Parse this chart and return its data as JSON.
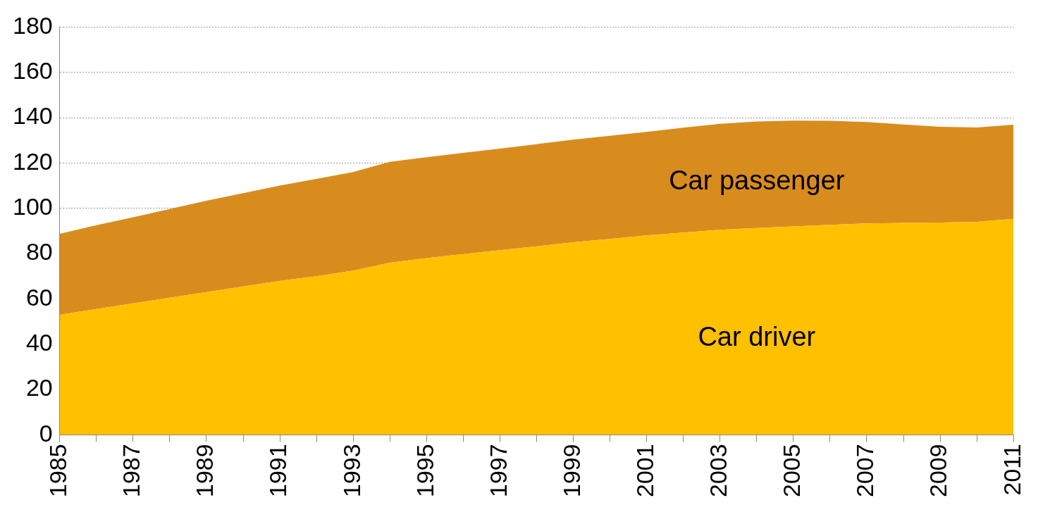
{
  "chart_data": {
    "type": "area",
    "stacked": true,
    "grid": "y",
    "categories": [
      "1985",
      null,
      "1987",
      null,
      "1989",
      null,
      "1991",
      null,
      "1993",
      null,
      "1995",
      null,
      "1997",
      null,
      "1999",
      null,
      "2001",
      null,
      "2003",
      null,
      "2005",
      null,
      "2007",
      null,
      "2009",
      null,
      "2011"
    ],
    "series": [
      {
        "name": "Car driver",
        "color": "#ffc000",
        "values": [
          53,
          55.5,
          58,
          60.5,
          63,
          65.5,
          68,
          70,
          72.5,
          76,
          78,
          79.8,
          81.5,
          83.2,
          85,
          86.5,
          88,
          89.3,
          90.5,
          91.3,
          92,
          92.7,
          93.3,
          93.5,
          93.7,
          94,
          95.3
        ]
      },
      {
        "name": "Car passenger",
        "color": "#d98c1e",
        "values": [
          35.7,
          37,
          38,
          39.2,
          40.3,
          41.2,
          42,
          43,
          43.5,
          44.5,
          44.5,
          44.7,
          44.8,
          45.1,
          45.3,
          45.5,
          45.7,
          46.3,
          46.8,
          47,
          46.7,
          45.9,
          44.8,
          43.5,
          42.3,
          41.7,
          41.6
        ]
      }
    ],
    "ylim": [
      0,
      180
    ],
    "yticks": [
      0,
      20,
      40,
      60,
      80,
      100,
      120,
      140,
      160,
      180
    ]
  }
}
